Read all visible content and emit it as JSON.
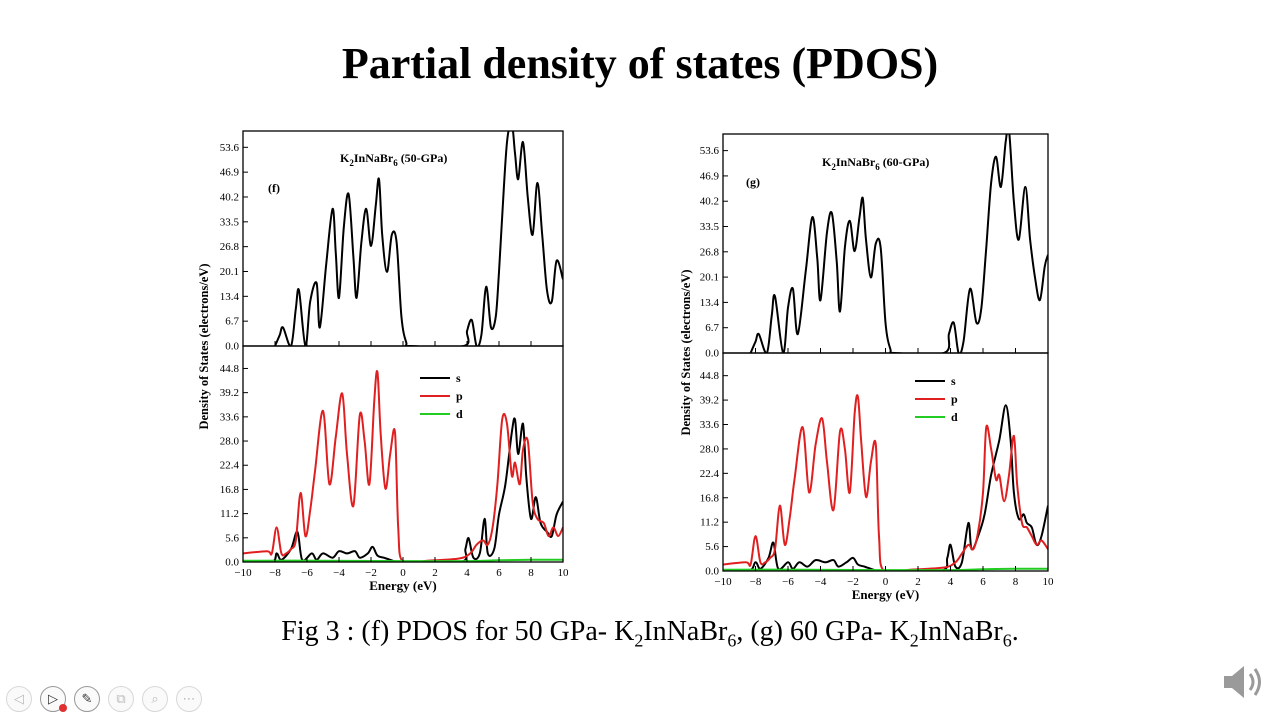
{
  "slide": {
    "title": "Partial density of states (PDOS)",
    "caption": {
      "p1": "Fig 3 : (f) PDOS for 50 GPa- K",
      "s1": "2",
      "p2": "InNaBr",
      "s2": "6",
      "p3": ", (g) 60 GPa- K",
      "s3": "2",
      "p4": "InNaBr",
      "s4": "6",
      "p5": "."
    }
  },
  "colors": {
    "s": "#000000",
    "p": "#e02020",
    "d": "#22cc22",
    "total": "#000000"
  },
  "toolbar": {
    "icons": [
      "back-arrow-icon",
      "play-icon",
      "pen-icon",
      "copy-icon",
      "zoom-icon",
      "more-icon"
    ],
    "glyphs": [
      "◁",
      "▷",
      "✎",
      "⧉",
      "⌕",
      "⋯"
    ]
  },
  "chart_data": [
    {
      "type": "line",
      "label": "(f)",
      "compound": {
        "pre": "K",
        "sub1": "2",
        "mid": "InNaBr",
        "sub2": "6",
        "post": " (50-GPa)"
      },
      "xlabel": "Energy (eV)",
      "ylabel": "Density of States (electrons/eV)",
      "xlim": [
        -10,
        10
      ],
      "xticks": [
        -10,
        -8,
        -6,
        -4,
        -2,
        0,
        2,
        4,
        6,
        8,
        10
      ],
      "top": {
        "ylim": [
          0,
          58
        ],
        "yticks": [
          "0.0",
          "6.7",
          "13.4",
          "20.1",
          "26.8",
          "33.5",
          "40.2",
          "46.9",
          "53.6"
        ],
        "series": [
          {
            "key": "total",
            "x": [
              -8.0,
              -7.7,
              -7.5,
              -7.0,
              -6.7,
              -6.5,
              -6.1,
              -5.8,
              -5.4,
              -5.2,
              -4.8,
              -4.4,
              -4.2,
              -4.0,
              -3.7,
              -3.4,
              -3.1,
              -2.9,
              -2.6,
              -2.3,
              -2.0,
              -1.7,
              -1.5,
              -1.3,
              -1.0,
              -0.7,
              -0.4,
              -0.1,
              0.2,
              0.5,
              3.8,
              4.0,
              4.3,
              4.6,
              4.9,
              5.2,
              5.5,
              5.8,
              6.0,
              6.2,
              6.5,
              6.8,
              7.0,
              7.2,
              7.5,
              7.8,
              8.1,
              8.4,
              8.7,
              9.0,
              9.3,
              9.6,
              10.0
            ],
            "y": [
              0,
              3,
              5,
              0,
              10,
              15,
              0,
              12,
              17,
              5,
              22,
              37,
              25,
              13,
              32,
              41,
              24,
              13,
              28,
              37,
              27,
              38,
              45,
              30,
              20,
              30,
              28,
              8,
              1,
              0,
              0,
              4,
              7,
              0,
              3,
              16,
              5,
              8,
              20,
              35,
              55,
              60,
              52,
              45,
              55,
              40,
              30,
              44,
              30,
              15,
              12,
              23,
              18
            ]
          }
        ]
      },
      "bottom": {
        "ylim": [
          0,
          50
        ],
        "yticks": [
          "0.0",
          "5.6",
          "11.2",
          "16.8",
          "22.4",
          "28.0",
          "33.6",
          "39.2",
          "44.8"
        ],
        "legend_position": "top-right",
        "series": [
          {
            "name": "s",
            "key": "s",
            "x": [
              -10,
              -8.2,
              -7.9,
              -7.6,
              -7.0,
              -6.6,
              -6.3,
              -5.7,
              -5.4,
              -5.0,
              -4.4,
              -4.0,
              -3.5,
              -3.0,
              -2.7,
              -2.2,
              -1.9,
              -1.6,
              -1.2,
              -0.8,
              -0.4,
              0,
              3.6,
              3.9,
              4.1,
              4.4,
              4.8,
              5.1,
              5.3,
              5.7,
              6.0,
              6.4,
              6.8,
              7.0,
              7.2,
              7.5,
              7.7,
              8.0,
              8.3,
              8.6,
              9.0,
              9.3,
              9.6,
              10.0
            ],
            "y": [
              0,
              0,
              2,
              0.5,
              3,
              7,
              0.5,
              2,
              0.5,
              2,
              1,
              2.5,
              2,
              2.5,
              1,
              2,
              3.5,
              1.5,
              1,
              0.5,
              0,
              0,
              0,
              3,
              5.5,
              1,
              2,
              10,
              2,
              3,
              11,
              18,
              30,
              33,
              25,
              32,
              20,
              10,
              15,
              9,
              7,
              6,
              11,
              14
            ]
          },
          {
            "name": "p",
            "key": "p",
            "x": [
              -10,
              -8.5,
              -8.2,
              -7.9,
              -7.6,
              -7.3,
              -7.0,
              -6.7,
              -6.4,
              -6.1,
              -5.8,
              -5.5,
              -5.0,
              -4.6,
              -4.2,
              -3.8,
              -3.5,
              -3.1,
              -2.7,
              -2.4,
              -2.1,
              -1.8,
              -1.6,
              -1.4,
              -1.1,
              -0.8,
              -0.5,
              -0.3,
              0,
              1.5,
              3.5,
              4.2,
              4.6,
              5.0,
              5.3,
              5.6,
              5.9,
              6.2,
              6.5,
              6.8,
              7.0,
              7.3,
              7.5,
              7.8,
              8.1,
              8.4,
              8.8,
              9.1,
              9.4,
              9.7,
              10.0
            ],
            "y": [
              2,
              2.5,
              2,
              8,
              2,
              2,
              3,
              5,
              16,
              6,
              12,
              21,
              35,
              18,
              29,
              39,
              25,
              13,
              34,
              28,
              18,
              37,
              44,
              30,
              17,
              25,
              30,
              8,
              0,
              0.3,
              0.8,
              2,
              4,
              5,
              4,
              8,
              18,
              33,
              32,
              20,
              23,
              18,
              26,
              28,
              14,
              10,
              9,
              6,
              8,
              6,
              8
            ]
          },
          {
            "name": "d",
            "key": "d",
            "x": [
              -10,
              -5,
              0,
              4,
              6,
              8,
              10
            ],
            "y": [
              0.3,
              0.3,
              0.2,
              0.2,
              0.4,
              0.5,
              0.5
            ]
          }
        ]
      }
    },
    {
      "type": "line",
      "label": "(g)",
      "compound": {
        "pre": "K",
        "sub1": "2",
        "mid": "InNaBr",
        "sub2": "6",
        "post": " (60-GPa)"
      },
      "xlabel": "Energy (eV)",
      "ylabel": "Density of States (electrons/eV)",
      "xlim": [
        -10,
        10
      ],
      "xticks": [
        -10,
        -8,
        -6,
        -4,
        -2,
        0,
        2,
        4,
        6,
        8,
        10
      ],
      "top": {
        "ylim": [
          0,
          58
        ],
        "yticks": [
          "0.0",
          "6.7",
          "13.4",
          "20.1",
          "26.8",
          "33.5",
          "40.2",
          "46.9",
          "53.6"
        ],
        "series": [
          {
            "key": "total",
            "x": [
              -8.3,
              -8.0,
              -7.8,
              -7.3,
              -7.0,
              -6.8,
              -6.3,
              -6.0,
              -5.7,
              -5.4,
              -4.9,
              -4.5,
              -4.2,
              -4.0,
              -3.6,
              -3.3,
              -3.0,
              -2.8,
              -2.5,
              -2.2,
              -1.9,
              -1.6,
              -1.4,
              -1.2,
              -0.9,
              -0.6,
              -0.3,
              0,
              0.3,
              0.6,
              3.6,
              3.9,
              4.2,
              4.5,
              4.8,
              5.2,
              5.6,
              5.9,
              6.2,
              6.5,
              6.8,
              7.1,
              7.4,
              7.6,
              7.9,
              8.2,
              8.6,
              8.9,
              9.2,
              9.5,
              9.8,
              10.0
            ],
            "y": [
              0,
              3,
              5,
              0,
              10,
              15,
              0,
              12,
              17,
              5,
              22,
              36,
              25,
              14,
              32,
              37,
              24,
              11,
              28,
              35,
              27,
              36,
              41,
              30,
              20,
              29,
              28,
              8,
              1,
              0,
              0,
              5,
              8,
              0,
              3,
              17,
              8,
              12,
              28,
              45,
              52,
              44,
              56,
              59,
              40,
              30,
              44,
              30,
              20,
              14,
              23,
              26
            ]
          }
        ]
      },
      "bottom": {
        "ylim": [
          0,
          50
        ],
        "yticks": [
          "0.0",
          "5.6",
          "11.2",
          "16.8",
          "22.4",
          "28.0",
          "33.6",
          "39.2",
          "44.8"
        ],
        "legend_position": "top-right",
        "series": [
          {
            "name": "s",
            "key": "s",
            "x": [
              -10,
              -8.4,
              -8.0,
              -7.7,
              -7.2,
              -6.9,
              -6.6,
              -6.0,
              -5.7,
              -5.3,
              -4.8,
              -4.3,
              -3.7,
              -3.2,
              -2.9,
              -2.4,
              -2.0,
              -1.7,
              -1.3,
              -0.9,
              -0.5,
              0,
              3.4,
              3.8,
              4.0,
              4.3,
              4.7,
              5.1,
              5.3,
              5.7,
              6.1,
              6.5,
              7.0,
              7.4,
              7.7,
              7.9,
              8.2,
              8.5,
              8.7,
              9.0,
              9.3,
              9.6,
              10.0
            ],
            "y": [
              0,
              0,
              2,
              0.5,
              3,
              6.5,
              0.5,
              2,
              0.5,
              2,
              1,
              2.5,
              2,
              2.5,
              1,
              2,
              3,
              1.5,
              1,
              0.5,
              0,
              0,
              0,
              3,
              6,
              1,
              2,
              11,
              5,
              8,
              13,
              22,
              30,
              38,
              30,
              18,
              12,
              13,
              11,
              10,
              6,
              8,
              15
            ]
          },
          {
            "name": "p",
            "key": "p",
            "x": [
              -10,
              -8.6,
              -8.3,
              -8.0,
              -7.7,
              -7.4,
              -7.1,
              -6.8,
              -6.5,
              -6.2,
              -5.9,
              -5.6,
              -5.1,
              -4.7,
              -4.3,
              -3.9,
              -3.6,
              -3.2,
              -2.8,
              -2.5,
              -2.2,
              -1.9,
              -1.7,
              -1.5,
              -1.2,
              -0.9,
              -0.6,
              -0.4,
              -0.1,
              1.5,
              3.6,
              4.3,
              4.7,
              5.1,
              5.4,
              5.7,
              6.0,
              6.2,
              6.5,
              6.8,
              7.0,
              7.3,
              7.6,
              7.9,
              8.1,
              8.4,
              8.7,
              9.0,
              9.3,
              9.6,
              10.0
            ],
            "y": [
              1.5,
              2,
              1.5,
              8,
              2,
              2,
              3,
              5,
              15,
              6,
              12,
              21,
              33,
              18,
              29,
              35,
              25,
              14,
              32,
              28,
              18,
              36,
              40,
              30,
              17,
              25,
              29,
              8,
              0,
              0.3,
              0.8,
              2,
              4,
              6,
              5,
              9,
              18,
              33,
              28,
              21,
              22,
              16,
              22,
              31,
              20,
              11,
              10,
              8,
              6,
              7,
              5
            ]
          },
          {
            "name": "d",
            "key": "d",
            "x": [
              -10,
              -5,
              0,
              4,
              6,
              8,
              10
            ],
            "y": [
              0.3,
              0.3,
              0.2,
              0.2,
              0.4,
              0.5,
              0.5
            ]
          }
        ]
      }
    }
  ]
}
